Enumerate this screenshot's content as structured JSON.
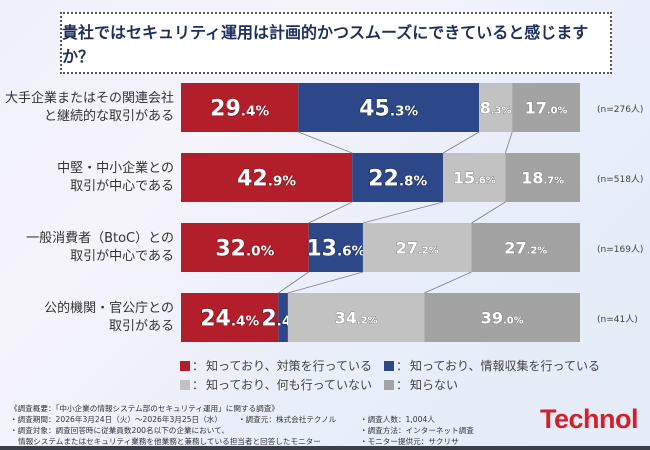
{
  "chart_data": {
    "type": "bar",
    "orientation": "horizontal-stacked-100",
    "title": "貴社ではセキュリティ運用は計画的かつスムーズにできていると感じますか？",
    "categories": [
      "大手企業またはその関連会社\nと継続的な取引がある",
      "中堅・中小企業との\n取引が中心である",
      "一般消費者（BtoC）との\n取引が中心である",
      "公的機関・官公庁との\n取引がある"
    ],
    "sample_sizes": [
      "(n=276人)",
      "(n=518人)",
      "(n=169人)",
      "(n=41人)"
    ],
    "series": [
      {
        "name": "知っており、対策を行っている",
        "color": "#b31e2b",
        "values": [
          29.4,
          42.9,
          32.0,
          24.4
        ]
      },
      {
        "name": "知っており、情報収集を行っている",
        "color": "#2c4888",
        "values": [
          45.3,
          22.8,
          13.6,
          2.4
        ]
      },
      {
        "name": "知っており、何も行っていない",
        "color": "#c2c2c2",
        "values": [
          8.3,
          15.6,
          27.2,
          34.2
        ]
      },
      {
        "name": "知らない",
        "color": "#a3a3a3",
        "values": [
          17.0,
          18.7,
          27.2,
          39.0
        ]
      }
    ],
    "xlim": [
      0,
      100
    ],
    "legend_position": "bottom"
  },
  "legend_prefix": "：",
  "footer": {
    "overview": "《調査概要：「中小企業の情報システム部のセキュリティ運用」に関する調査》",
    "period": "・調査期間：2026年3月24日（火）～2026年3月25日（水）",
    "organizer": "・調査元：株式会社テクノル",
    "count": "・調査人数：1,004人",
    "target1": "・調査対象：調査回答時に従業員数200名以下の企業において、",
    "target2": "情報システムまたはセキュリティ業務を他業務と兼務している担当者と回答したモニター",
    "method": "・調査方法：インターネット調査",
    "provider": "・モニター提供元：サクリサ"
  },
  "logo": "Technol"
}
